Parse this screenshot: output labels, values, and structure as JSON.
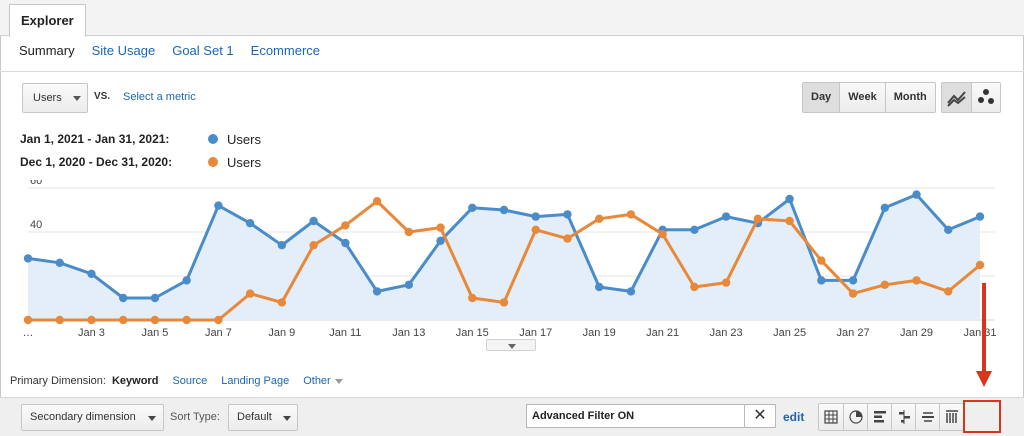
{
  "tabs": {
    "explorer": "Explorer"
  },
  "subtabs": [
    "Summary",
    "Site Usage",
    "Goal Set 1",
    "Ecommerce"
  ],
  "metric": {
    "selected": "Users",
    "vs": "VS.",
    "select_metric": "Select a metric"
  },
  "periods": [
    "Day",
    "Week",
    "Month"
  ],
  "active_period": "Day",
  "chart_type_icons": [
    "line-chart-icon",
    "motion-chart-icon"
  ],
  "legend": [
    {
      "range": "Jan 1, 2021 - Jan 31, 2021:",
      "series": "Users",
      "color": "#4a8cc9"
    },
    {
      "range": "Dec 1, 2020 - Dec 31, 2020:",
      "series": "Users",
      "color": "#e8883a"
    }
  ],
  "chart_data": {
    "type": "line",
    "x": [
      "…",
      "Jan 2",
      "Jan 3",
      "Jan 4",
      "Jan 5",
      "Jan 6",
      "Jan 7",
      "Jan 8",
      "Jan 9",
      "Jan 10",
      "Jan 11",
      "Jan 12",
      "Jan 13",
      "Jan 14",
      "Jan 15",
      "Jan 16",
      "Jan 17",
      "Jan 18",
      "Jan 19",
      "Jan 20",
      "Jan 21",
      "Jan 22",
      "Jan 23",
      "Jan 24",
      "Jan 25",
      "Jan 26",
      "Jan 27",
      "Jan 28",
      "Jan 29",
      "Jan 30",
      "Jan 31"
    ],
    "x_tick_labels": [
      "…",
      "Jan 3",
      "Jan 5",
      "Jan 7",
      "Jan 9",
      "Jan 11",
      "Jan 13",
      "Jan 15",
      "Jan 17",
      "Jan 19",
      "Jan 21",
      "Jan 23",
      "Jan 25",
      "Jan 27",
      "Jan 29",
      "Jan 31"
    ],
    "x_tick_indices": [
      0,
      2,
      4,
      6,
      8,
      10,
      12,
      14,
      16,
      18,
      20,
      22,
      24,
      26,
      28,
      30
    ],
    "ylim": [
      0,
      60
    ],
    "y_ticks": [
      20,
      40,
      60
    ],
    "series": [
      {
        "name": "Users",
        "color": "#4a8cc9",
        "fill": "#e3eef8",
        "values": [
          28,
          26,
          21,
          10,
          10,
          18,
          52,
          44,
          34,
          45,
          35,
          13,
          16,
          36,
          51,
          50,
          47,
          48,
          15,
          13,
          41,
          41,
          47,
          44,
          55,
          18,
          18,
          51,
          57,
          41,
          47
        ]
      },
      {
        "name": "Users",
        "color": "#e8883a",
        "fill": null,
        "values": [
          0,
          0,
          0,
          0,
          0,
          0,
          0,
          12,
          8,
          34,
          43,
          54,
          40,
          42,
          10,
          8,
          41,
          37,
          46,
          48,
          39,
          15,
          17,
          46,
          45,
          27,
          12,
          16,
          18,
          13,
          25
        ]
      }
    ]
  },
  "primary_dimension": {
    "label": "Primary Dimension:",
    "active": "Keyword",
    "links": [
      "Source",
      "Landing Page"
    ],
    "other": "Other"
  },
  "toolbar": {
    "secondary_dimension": "Secondary dimension",
    "sort_type_label": "Sort Type:",
    "sort_type_value": "Default",
    "filter_value": "Advanced Filter ON",
    "clear_symbol": "✕",
    "edit": "edit",
    "view_icons": [
      "table-view-icon",
      "pie-view-icon",
      "performance-view-icon",
      "comparison-view-icon",
      "term-cloud-icon",
      "pivot-view-icon"
    ]
  },
  "annotation_color": "#d9351e"
}
